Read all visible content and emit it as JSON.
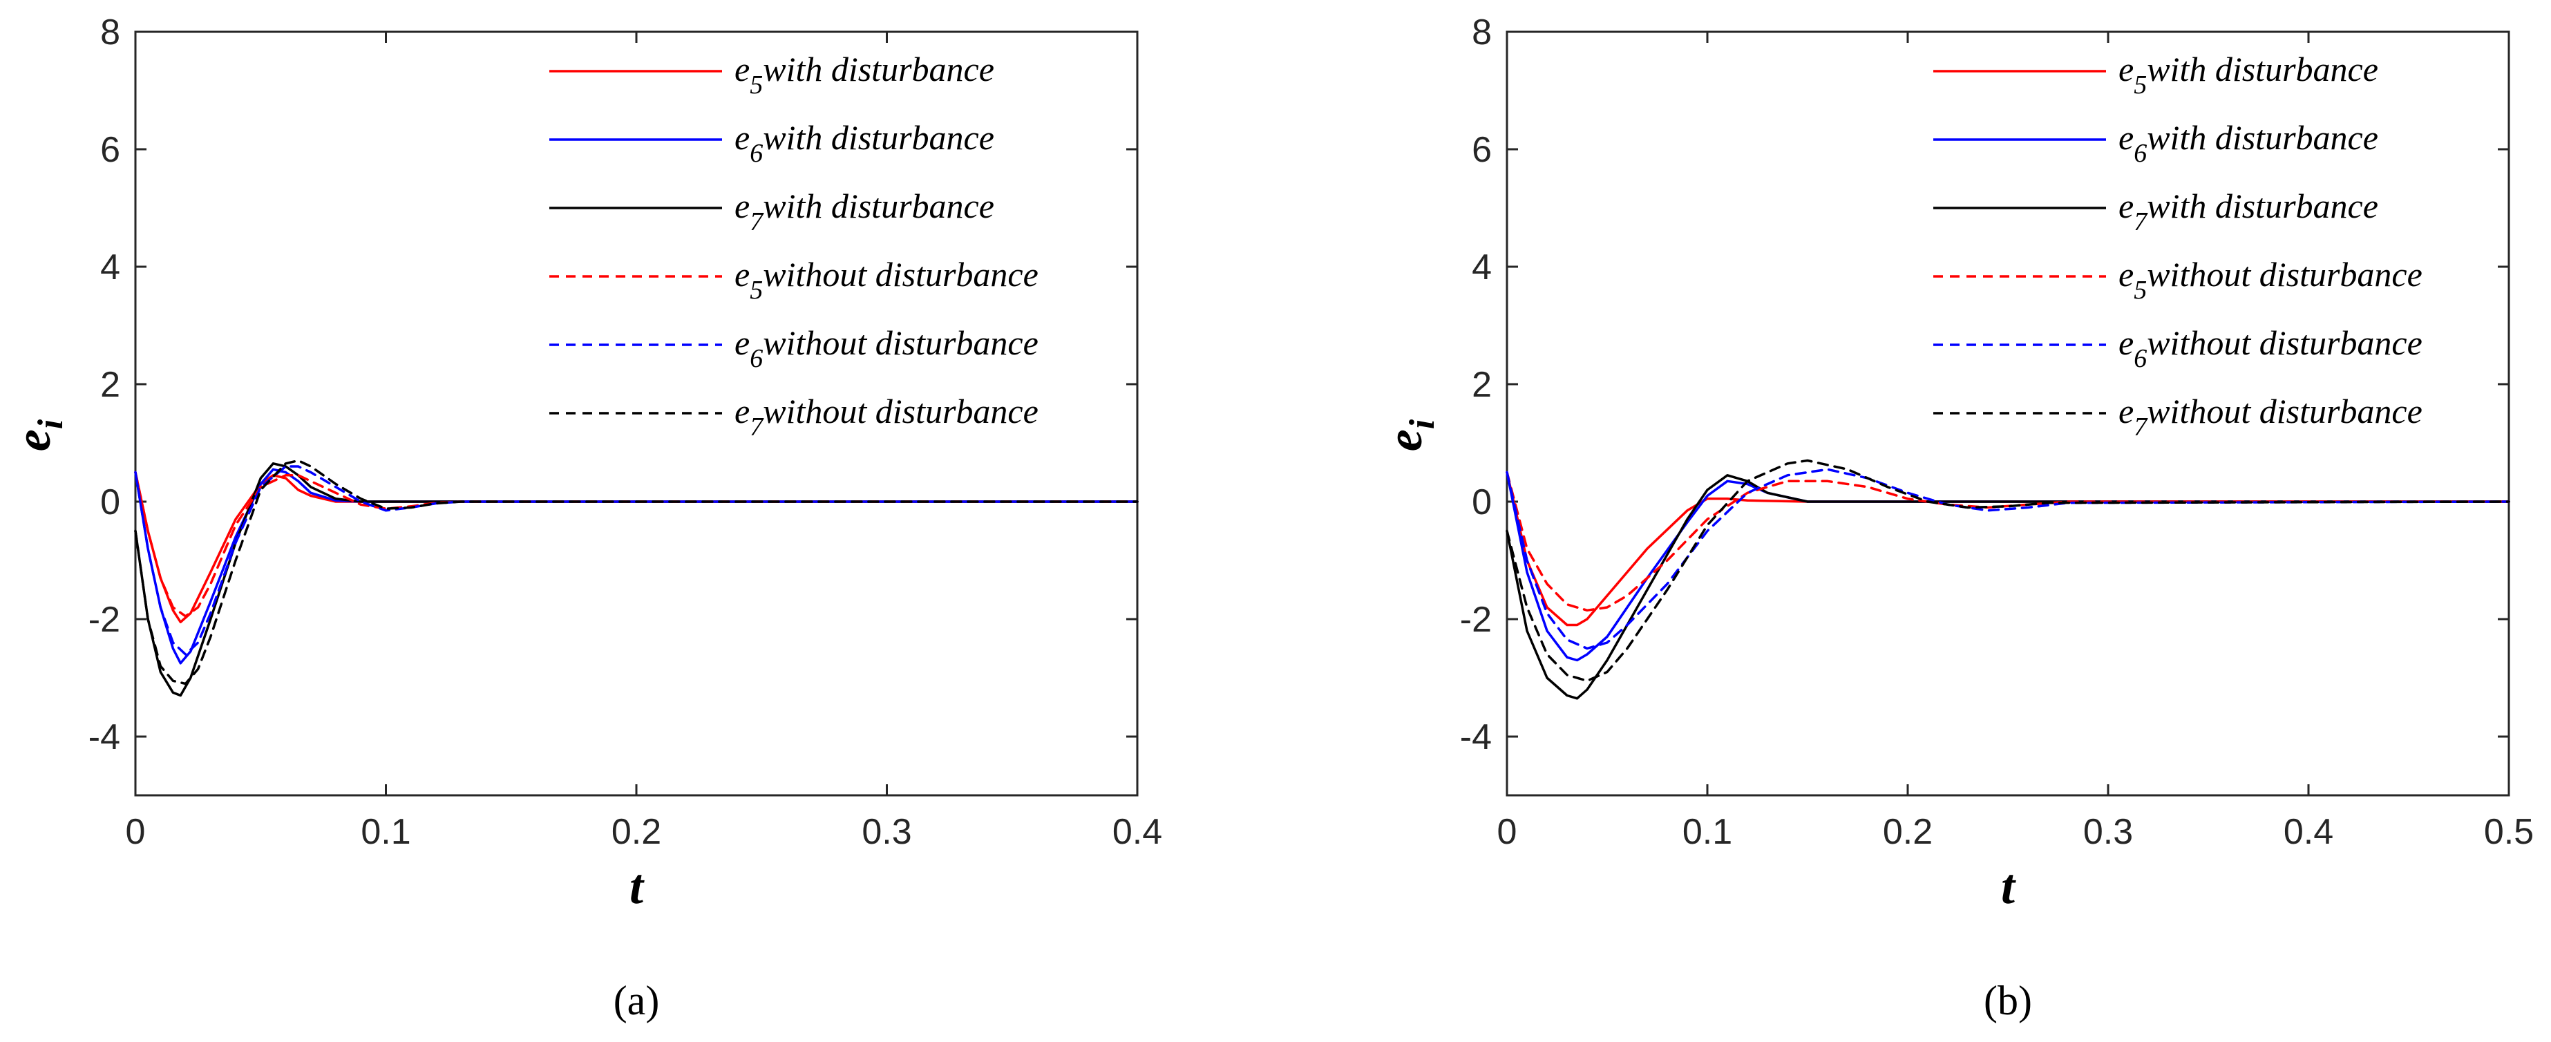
{
  "chart_data": [
    {
      "type": "line",
      "panel": "a",
      "caption": "(a)",
      "xlabel": "t",
      "ylabel": "e",
      "ylabel_sub": "i",
      "xlim": [
        0,
        0.4
      ],
      "ylim": [
        -5,
        8
      ],
      "xticks": [
        0,
        0.1,
        0.2,
        0.3,
        0.4
      ],
      "xtick_labels": [
        "0",
        "0.1",
        "0.2",
        "0.3",
        "0.4"
      ],
      "yticks": [
        -4,
        -2,
        0,
        2,
        4,
        6,
        8
      ],
      "ytick_labels": [
        "-4",
        "-2",
        "0",
        "2",
        "4",
        "6",
        "8"
      ],
      "legend_position": "top-right",
      "series": [
        {
          "name": "e5 with disturbance",
          "symbol": "e",
          "sub": "5",
          "label": "with disturbance",
          "color": "#ff0000",
          "dash": false,
          "x": [
            0,
            0.005,
            0.01,
            0.015,
            0.018,
            0.022,
            0.03,
            0.04,
            0.05,
            0.055,
            0.06,
            0.065,
            0.07,
            0.08,
            0.09,
            0.1,
            0.4
          ],
          "y": [
            0.5,
            -0.5,
            -1.3,
            -1.85,
            -2.05,
            -1.9,
            -1.2,
            -0.3,
            0.3,
            0.45,
            0.4,
            0.2,
            0.1,
            0.0,
            0.0,
            0.0,
            0.0
          ]
        },
        {
          "name": "e6 with disturbance",
          "symbol": "e",
          "sub": "6",
          "label": "with disturbance",
          "color": "#0000ff",
          "dash": false,
          "x": [
            0,
            0.005,
            0.01,
            0.015,
            0.018,
            0.022,
            0.03,
            0.04,
            0.05,
            0.055,
            0.06,
            0.065,
            0.07,
            0.08,
            0.09,
            0.1,
            0.4
          ],
          "y": [
            0.5,
            -0.8,
            -1.8,
            -2.5,
            -2.75,
            -2.55,
            -1.7,
            -0.6,
            0.3,
            0.55,
            0.5,
            0.35,
            0.15,
            0.02,
            0.0,
            0.0,
            0.0
          ]
        },
        {
          "name": "e7 with disturbance",
          "symbol": "e",
          "sub": "7",
          "label": "with disturbance",
          "color": "#000000",
          "dash": false,
          "x": [
            0,
            0.005,
            0.01,
            0.015,
            0.018,
            0.022,
            0.03,
            0.04,
            0.05,
            0.055,
            0.06,
            0.065,
            0.07,
            0.08,
            0.09,
            0.1,
            0.4
          ],
          "y": [
            -0.5,
            -2.0,
            -2.9,
            -3.25,
            -3.3,
            -3.0,
            -2.0,
            -0.7,
            0.4,
            0.65,
            0.6,
            0.45,
            0.25,
            0.05,
            0.0,
            0.0,
            0.0
          ]
        },
        {
          "name": "e5 without disturbance",
          "symbol": "e",
          "sub": "5",
          "label": "without disturbance",
          "color": "#ff0000",
          "dash": true,
          "x": [
            0,
            0.005,
            0.01,
            0.015,
            0.02,
            0.025,
            0.03,
            0.04,
            0.05,
            0.06,
            0.065,
            0.07,
            0.08,
            0.09,
            0.1,
            0.11,
            0.12,
            0.13,
            0.4
          ],
          "y": [
            0.5,
            -0.5,
            -1.3,
            -1.8,
            -1.95,
            -1.8,
            -1.4,
            -0.4,
            0.25,
            0.45,
            0.45,
            0.35,
            0.15,
            -0.05,
            -0.12,
            -0.08,
            -0.02,
            0.0,
            0.0
          ]
        },
        {
          "name": "e6 without disturbance",
          "symbol": "e",
          "sub": "6",
          "label": "without disturbance",
          "color": "#0000ff",
          "dash": true,
          "x": [
            0,
            0.005,
            0.01,
            0.015,
            0.02,
            0.025,
            0.03,
            0.04,
            0.05,
            0.06,
            0.065,
            0.07,
            0.08,
            0.09,
            0.1,
            0.11,
            0.12,
            0.13,
            0.4
          ],
          "y": [
            0.5,
            -0.8,
            -1.8,
            -2.4,
            -2.6,
            -2.4,
            -1.9,
            -0.7,
            0.25,
            0.6,
            0.6,
            0.5,
            0.25,
            0.0,
            -0.15,
            -0.1,
            -0.03,
            0.0,
            0.0
          ]
        },
        {
          "name": "e7 without disturbance",
          "symbol": "e",
          "sub": "7",
          "label": "without disturbance",
          "color": "#000000",
          "dash": true,
          "x": [
            0,
            0.005,
            0.01,
            0.015,
            0.02,
            0.025,
            0.03,
            0.04,
            0.05,
            0.06,
            0.065,
            0.07,
            0.08,
            0.09,
            0.1,
            0.11,
            0.12,
            0.13,
            0.4
          ],
          "y": [
            -0.5,
            -2.0,
            -2.8,
            -3.05,
            -3.1,
            -2.85,
            -2.3,
            -1.0,
            0.2,
            0.65,
            0.7,
            0.6,
            0.3,
            0.05,
            -0.12,
            -0.1,
            -0.03,
            0.0,
            0.0
          ]
        }
      ]
    },
    {
      "type": "line",
      "panel": "b",
      "caption": "(b)",
      "xlabel": "t",
      "ylabel": "e",
      "ylabel_sub": "i",
      "xlim": [
        0,
        0.5
      ],
      "ylim": [
        -5,
        8
      ],
      "xticks": [
        0,
        0.1,
        0.2,
        0.3,
        0.4,
        0.5
      ],
      "xtick_labels": [
        "0",
        "0.1",
        "0.2",
        "0.3",
        "0.4",
        "0.5"
      ],
      "yticks": [
        -4,
        -2,
        0,
        2,
        4,
        6,
        8
      ],
      "ytick_labels": [
        "-4",
        "-2",
        "0",
        "2",
        "4",
        "6",
        "8"
      ],
      "legend_position": "top-right",
      "series": [
        {
          "name": "e5 with disturbance",
          "symbol": "e",
          "sub": "5",
          "label": "with disturbance",
          "color": "#ff0000",
          "dash": false,
          "x": [
            0,
            0.01,
            0.02,
            0.03,
            0.035,
            0.04,
            0.05,
            0.07,
            0.09,
            0.1,
            0.11,
            0.12,
            0.15,
            0.5
          ],
          "y": [
            0.5,
            -1.0,
            -1.8,
            -2.1,
            -2.1,
            -2.0,
            -1.6,
            -0.8,
            -0.15,
            0.05,
            0.05,
            0.02,
            0.0,
            0.0
          ]
        },
        {
          "name": "e6 with disturbance",
          "symbol": "e",
          "sub": "6",
          "label": "with disturbance",
          "color": "#0000ff",
          "dash": false,
          "x": [
            0,
            0.01,
            0.02,
            0.03,
            0.035,
            0.04,
            0.05,
            0.07,
            0.09,
            0.1,
            0.11,
            0.12,
            0.13,
            0.15,
            0.5
          ],
          "y": [
            0.5,
            -1.2,
            -2.2,
            -2.65,
            -2.7,
            -2.6,
            -2.3,
            -1.3,
            -0.35,
            0.1,
            0.35,
            0.3,
            0.15,
            0.0,
            0.0
          ]
        },
        {
          "name": "e7 with disturbance",
          "symbol": "e",
          "sub": "7",
          "label": "with disturbance",
          "color": "#000000",
          "dash": false,
          "x": [
            0,
            0.01,
            0.02,
            0.03,
            0.035,
            0.04,
            0.05,
            0.07,
            0.09,
            0.1,
            0.11,
            0.12,
            0.13,
            0.15,
            0.5
          ],
          "y": [
            -0.5,
            -2.2,
            -3.0,
            -3.3,
            -3.35,
            -3.2,
            -2.7,
            -1.5,
            -0.3,
            0.2,
            0.45,
            0.35,
            0.15,
            0.0,
            0.0
          ]
        },
        {
          "name": "e5 without disturbance",
          "symbol": "e",
          "sub": "5",
          "label": "without disturbance",
          "color": "#ff0000",
          "dash": true,
          "x": [
            0,
            0.01,
            0.02,
            0.03,
            0.04,
            0.05,
            0.06,
            0.08,
            0.1,
            0.12,
            0.14,
            0.16,
            0.18,
            0.2,
            0.22,
            0.24,
            0.26,
            0.28,
            0.5
          ],
          "y": [
            0.5,
            -0.8,
            -1.4,
            -1.75,
            -1.85,
            -1.8,
            -1.6,
            -1.0,
            -0.3,
            0.15,
            0.35,
            0.35,
            0.25,
            0.05,
            -0.05,
            -0.1,
            -0.05,
            0.0,
            0.0
          ]
        },
        {
          "name": "e6 without disturbance",
          "symbol": "e",
          "sub": "6",
          "label": "without disturbance",
          "color": "#0000ff",
          "dash": true,
          "x": [
            0,
            0.01,
            0.02,
            0.03,
            0.04,
            0.05,
            0.06,
            0.08,
            0.1,
            0.12,
            0.14,
            0.16,
            0.18,
            0.2,
            0.22,
            0.24,
            0.26,
            0.28,
            0.5
          ],
          "y": [
            0.5,
            -1.0,
            -1.9,
            -2.35,
            -2.5,
            -2.4,
            -2.1,
            -1.4,
            -0.5,
            0.15,
            0.45,
            0.55,
            0.4,
            0.15,
            -0.05,
            -0.15,
            -0.1,
            -0.02,
            0.0
          ]
        },
        {
          "name": "e7 without disturbance",
          "symbol": "e",
          "sub": "7",
          "label": "without disturbance",
          "color": "#000000",
          "dash": true,
          "x": [
            0,
            0.01,
            0.02,
            0.03,
            0.04,
            0.05,
            0.06,
            0.08,
            0.1,
            0.12,
            0.14,
            0.15,
            0.17,
            0.19,
            0.21,
            0.23,
            0.25,
            0.27,
            0.5
          ],
          "y": [
            -0.5,
            -1.8,
            -2.6,
            -2.95,
            -3.05,
            -2.9,
            -2.5,
            -1.5,
            -0.4,
            0.35,
            0.65,
            0.7,
            0.55,
            0.25,
            0.0,
            -0.1,
            -0.08,
            -0.02,
            0.0
          ]
        }
      ]
    }
  ]
}
